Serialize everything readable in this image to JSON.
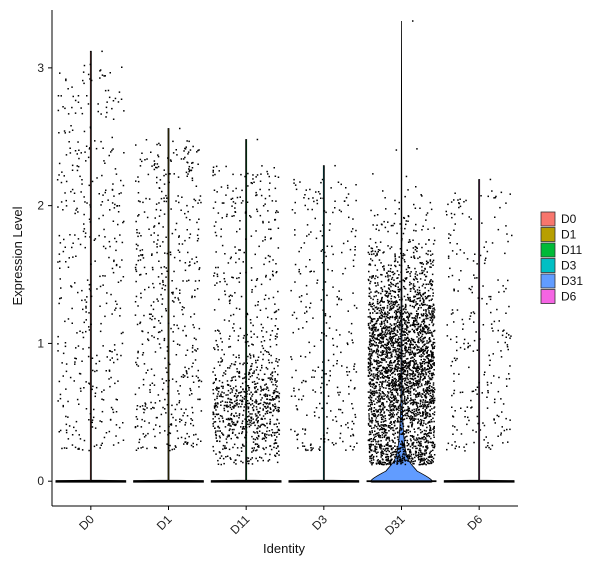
{
  "chart_data": {
    "type": "violin",
    "xlabel": "Identity",
    "ylabel": "Expression Level",
    "ylim": [
      -0.18,
      3.42
    ],
    "yticks": [
      0,
      1,
      2,
      3
    ],
    "grid": false,
    "legend_position": "right",
    "categories": [
      "D0",
      "D1",
      "D11",
      "D3",
      "D31",
      "D6"
    ],
    "series": [
      {
        "name": "D0",
        "color": "#F8766D",
        "max_value": 3.12,
        "zero_fraction": 0.93,
        "approx_nonzero_cells": 420,
        "violin_peak_width": 0.02
      },
      {
        "name": "D1",
        "color": "#B79F00",
        "max_value": 2.56,
        "zero_fraction": 0.93,
        "approx_nonzero_cells": 520,
        "violin_peak_width": 0.02
      },
      {
        "name": "D11",
        "color": "#00BA38",
        "max_value": 2.48,
        "zero_fraction": 0.9,
        "approx_nonzero_cells": 980,
        "violin_peak_width": 0.02
      },
      {
        "name": "D3",
        "color": "#00BFC4",
        "max_value": 2.29,
        "zero_fraction": 0.95,
        "approx_nonzero_cells": 300,
        "violin_peak_width": 0.02
      },
      {
        "name": "D31",
        "color": "#619CFF",
        "max_value": 3.34,
        "zero_fraction": 0.6,
        "approx_nonzero_cells": 3200,
        "violin_peak_width": 0.45
      },
      {
        "name": "D6",
        "color": "#F564E3",
        "max_value": 2.19,
        "zero_fraction": 0.95,
        "approx_nonzero_cells": 260,
        "violin_peak_width": 0.02
      }
    ]
  }
}
